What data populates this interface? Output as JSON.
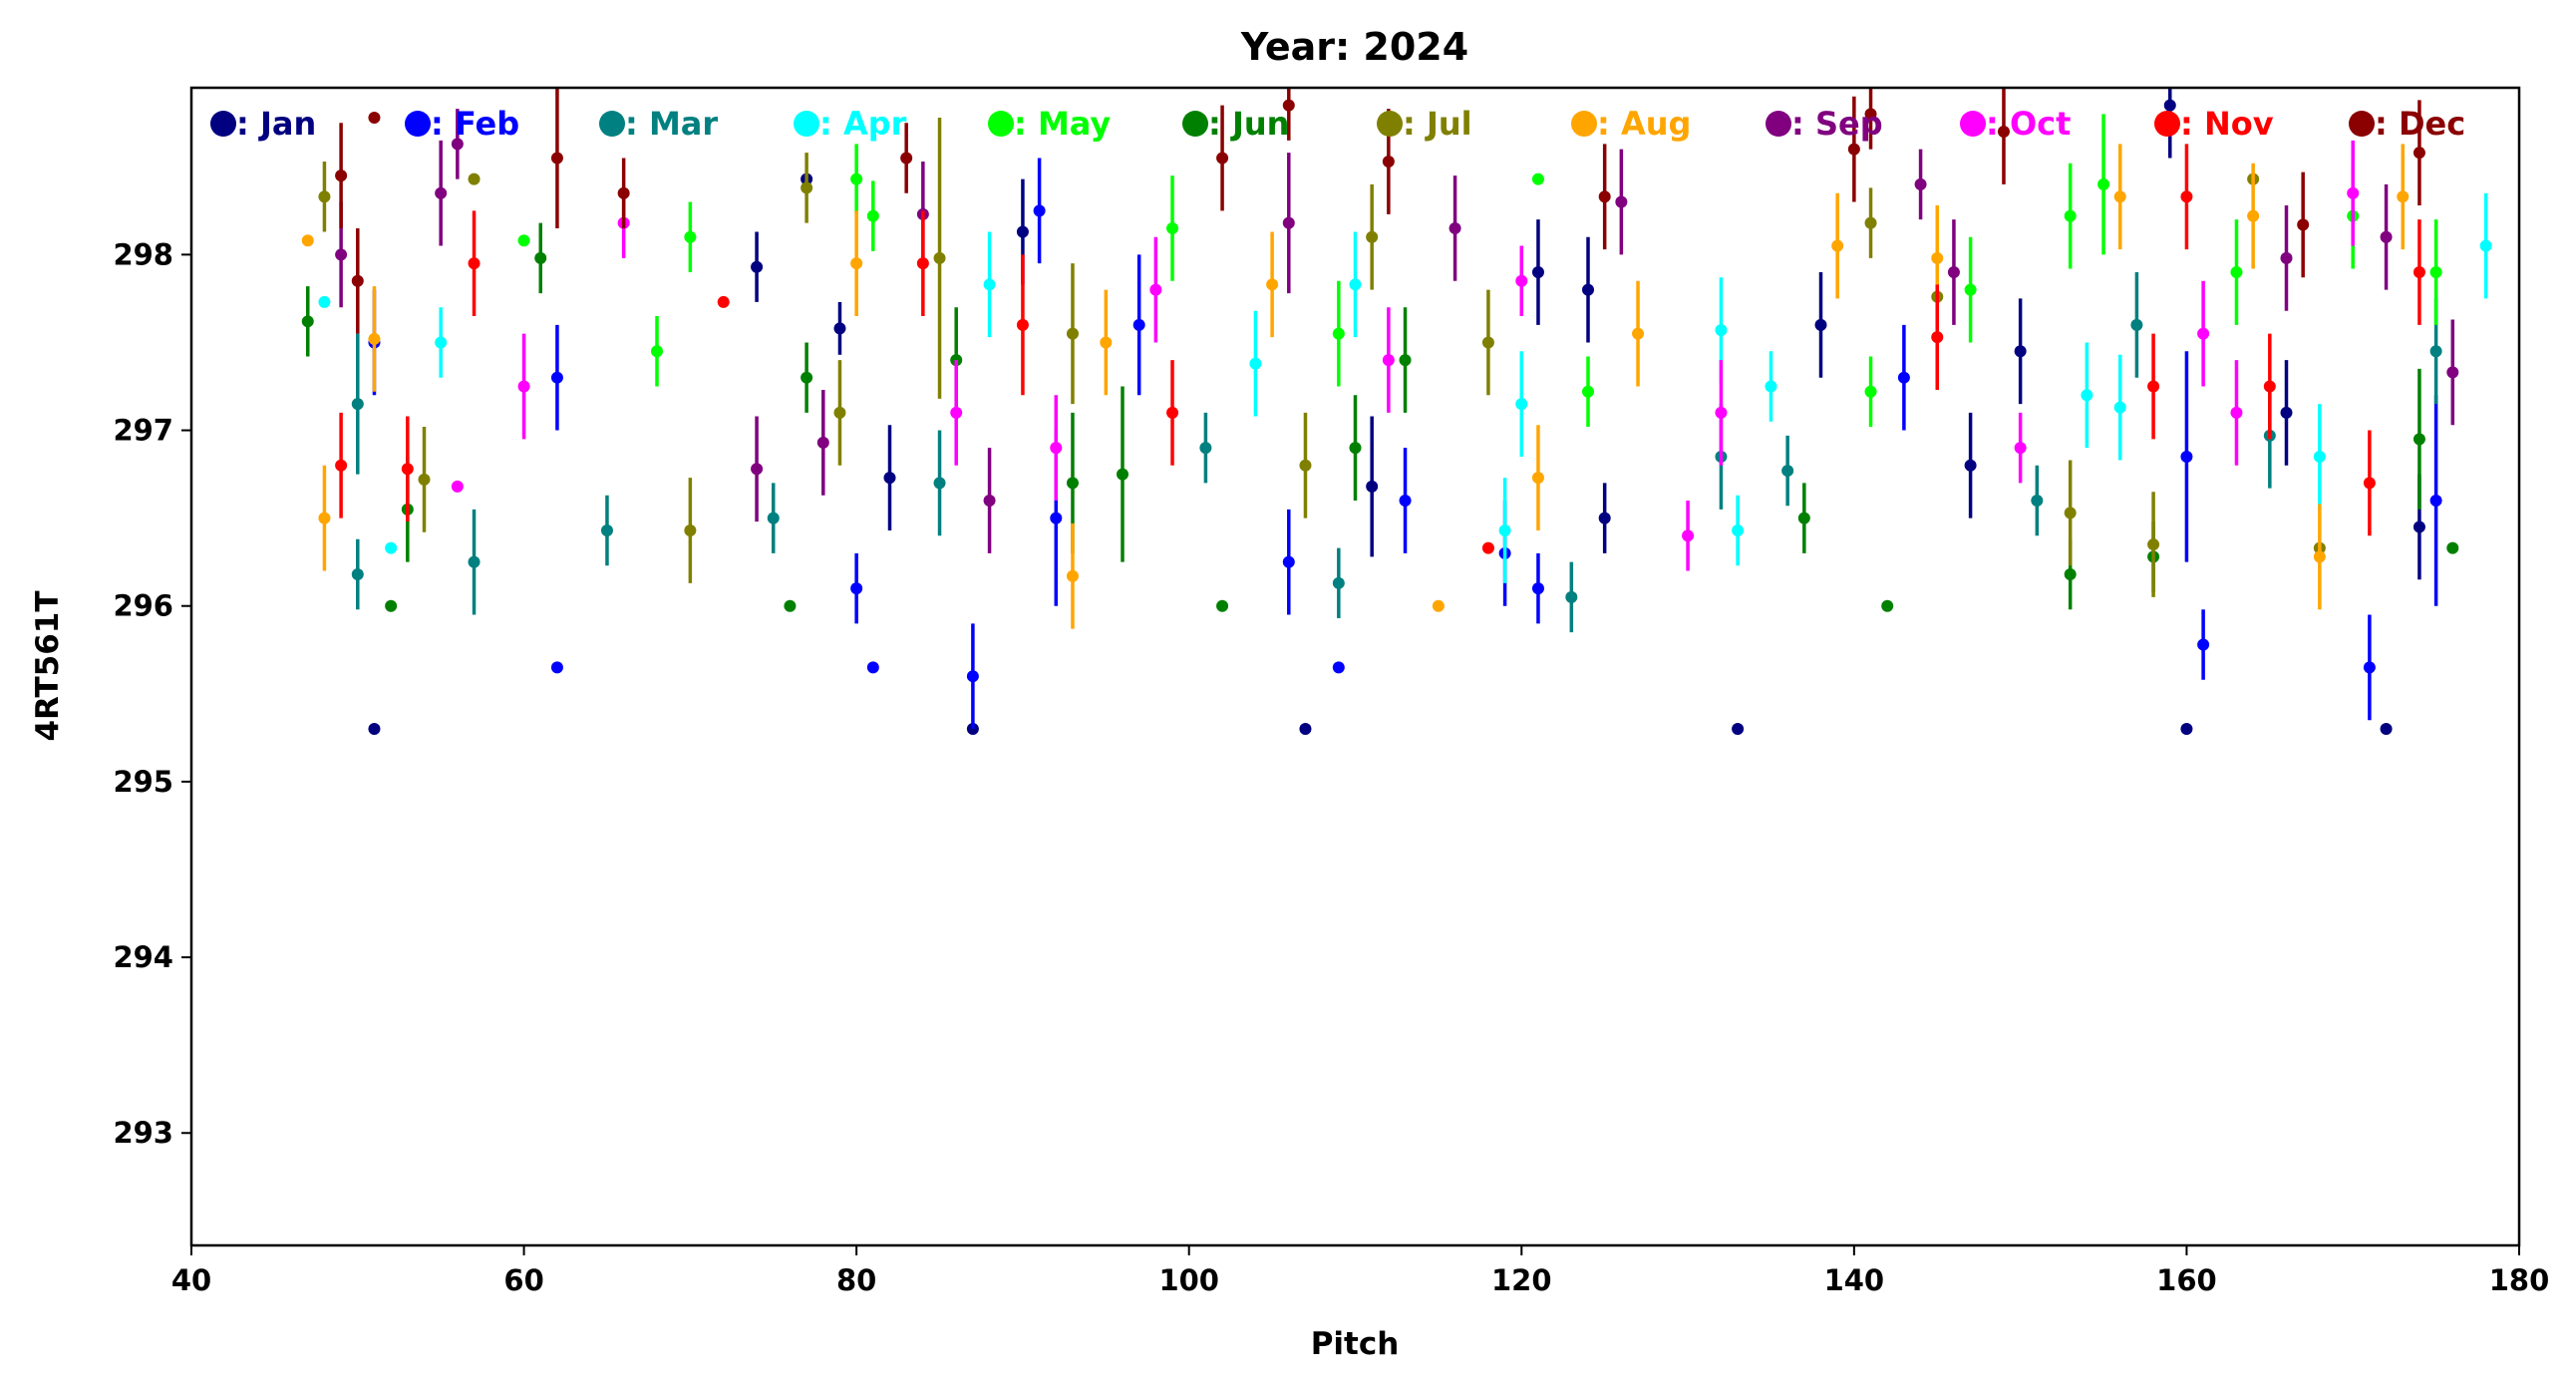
{
  "chart_data": {
    "type": "scatter",
    "title": "Year: 2024",
    "xlabel": "Pitch",
    "ylabel": "4RT561T",
    "xlim": [
      40,
      180
    ],
    "ylim": [
      292.36,
      298.95
    ],
    "xticks": [
      40,
      60,
      80,
      100,
      120,
      140,
      160,
      180
    ],
    "yticks": [
      293,
      294,
      295,
      296,
      297,
      298
    ],
    "grid": false,
    "legend_placement": "top (inside, single row)",
    "point_format": "[pitch, value, error]",
    "series": [
      {
        "name": "Jan",
        "legend": ": Jan",
        "color": "#000080",
        "points": [
          [
            51,
            295.3,
            0
          ],
          [
            74,
            297.93,
            0.2
          ],
          [
            77,
            298.43,
            0
          ],
          [
            79,
            297.58,
            0.15
          ],
          [
            82,
            296.73,
            0.3
          ],
          [
            87,
            295.3,
            0
          ],
          [
            90,
            298.13,
            0.3
          ],
          [
            107,
            295.3,
            0
          ],
          [
            111,
            296.68,
            0.4
          ],
          [
            121,
            297.9,
            0.3
          ],
          [
            124,
            297.8,
            0.3
          ],
          [
            125,
            296.5,
            0.2
          ],
          [
            133,
            295.3,
            0
          ],
          [
            138,
            297.6,
            0.3
          ],
          [
            147,
            296.8,
            0.3
          ],
          [
            150,
            297.45,
            0.3
          ],
          [
            159,
            298.85,
            0.3
          ],
          [
            160,
            295.3,
            0
          ],
          [
            166,
            297.1,
            0.3
          ],
          [
            172,
            295.3,
            0
          ],
          [
            174,
            296.45,
            0.3
          ]
        ]
      },
      {
        "name": "Feb",
        "legend": ": Feb",
        "color": "#0000ff",
        "points": [
          [
            51,
            297.5,
            0.3
          ],
          [
            62,
            297.3,
            0.3
          ],
          [
            62,
            295.65,
            0
          ],
          [
            80,
            296.1,
            0.2
          ],
          [
            81,
            295.65,
            0
          ],
          [
            87,
            295.6,
            0.3
          ],
          [
            91,
            298.25,
            0.3
          ],
          [
            92,
            296.5,
            0.5
          ],
          [
            97,
            297.6,
            0.4
          ],
          [
            106,
            296.25,
            0.3
          ],
          [
            109,
            295.65,
            0
          ],
          [
            113,
            296.6,
            0.3
          ],
          [
            119,
            296.3,
            0.3
          ],
          [
            121,
            296.1,
            0.2
          ],
          [
            143,
            297.3,
            0.3
          ],
          [
            160,
            296.85,
            0.6
          ],
          [
            161,
            295.78,
            0.2
          ],
          [
            171,
            295.65,
            0.3
          ],
          [
            175,
            296.6,
            0.6
          ]
        ]
      },
      {
        "name": "Mar",
        "legend": ": Mar",
        "color": "#008080",
        "points": [
          [
            50,
            297.15,
            0.4
          ],
          [
            50,
            296.18,
            0.2
          ],
          [
            57,
            296.25,
            0.3
          ],
          [
            65,
            296.43,
            0.2
          ],
          [
            75,
            296.5,
            0.2
          ],
          [
            85,
            296.7,
            0.3
          ],
          [
            101,
            296.9,
            0.2
          ],
          [
            109,
            296.13,
            0.2
          ],
          [
            123,
            296.05,
            0.2
          ],
          [
            132,
            296.85,
            0.3
          ],
          [
            136,
            296.77,
            0.2
          ],
          [
            151,
            296.6,
            0.2
          ],
          [
            157,
            297.6,
            0.3
          ],
          [
            165,
            296.97,
            0.3
          ],
          [
            175,
            297.45,
            0.3
          ]
        ]
      },
      {
        "name": "Apr",
        "legend": ": Apr",
        "color": "#00ffff",
        "points": [
          [
            48,
            297.73,
            0
          ],
          [
            52,
            296.33,
            0
          ],
          [
            55,
            297.5,
            0.2
          ],
          [
            88,
            297.83,
            0.3
          ],
          [
            104,
            297.38,
            0.3
          ],
          [
            110,
            297.83,
            0.3
          ],
          [
            119,
            296.43,
            0.3
          ],
          [
            120,
            297.15,
            0.3
          ],
          [
            132,
            297.57,
            0.3
          ],
          [
            133,
            296.43,
            0.2
          ],
          [
            135,
            297.25,
            0.2
          ],
          [
            154,
            297.2,
            0.3
          ],
          [
            156,
            297.13,
            0.3
          ],
          [
            168,
            296.85,
            0.3
          ],
          [
            178,
            298.05,
            0.3
          ]
        ]
      },
      {
        "name": "May",
        "legend": ": May",
        "color": "#00ff00",
        "points": [
          [
            60,
            298.08,
            0
          ],
          [
            68,
            297.45,
            0.2
          ],
          [
            70,
            298.1,
            0.2
          ],
          [
            80,
            298.43,
            0.2
          ],
          [
            81,
            298.22,
            0.2
          ],
          [
            99,
            298.15,
            0.3
          ],
          [
            109,
            297.55,
            0.3
          ],
          [
            121,
            298.43,
            0
          ],
          [
            124,
            297.22,
            0.2
          ],
          [
            141,
            297.22,
            0.2
          ],
          [
            147,
            297.8,
            0.3
          ],
          [
            153,
            298.22,
            0.3
          ],
          [
            155,
            298.4,
            0.4
          ],
          [
            163,
            297.9,
            0.3
          ],
          [
            170,
            298.22,
            0.3
          ],
          [
            175,
            297.9,
            0.3
          ]
        ]
      },
      {
        "name": "Jun",
        "legend": ": Jun",
        "color": "#008000",
        "points": [
          [
            47,
            297.62,
            0.2
          ],
          [
            52,
            296.0,
            0
          ],
          [
            53,
            296.55,
            0.3
          ],
          [
            61,
            297.98,
            0.2
          ],
          [
            76,
            296.0,
            0
          ],
          [
            77,
            297.3,
            0.2
          ],
          [
            86,
            297.4,
            0.3
          ],
          [
            93,
            296.7,
            0.4
          ],
          [
            96,
            296.75,
            0.5
          ],
          [
            102,
            296.0,
            0
          ],
          [
            110,
            296.9,
            0.3
          ],
          [
            113,
            297.4,
            0.3
          ],
          [
            137,
            296.5,
            0.2
          ],
          [
            142,
            296.0,
            0
          ],
          [
            153,
            296.18,
            0.2
          ],
          [
            158,
            296.28,
            0.2
          ],
          [
            174,
            296.95,
            0.4
          ],
          [
            176,
            296.33,
            0
          ]
        ]
      },
      {
        "name": "Jul",
        "legend": ": Jul",
        "color": "#808000",
        "points": [
          [
            48,
            298.33,
            0.2
          ],
          [
            54,
            296.72,
            0.3
          ],
          [
            57,
            298.43,
            0
          ],
          [
            70,
            296.43,
            0.3
          ],
          [
            77,
            298.38,
            0.2
          ],
          [
            79,
            297.1,
            0.3
          ],
          [
            85,
            297.98,
            0.8
          ],
          [
            93,
            297.55,
            0.4
          ],
          [
            107,
            296.8,
            0.3
          ],
          [
            111,
            298.1,
            0.3
          ],
          [
            118,
            297.5,
            0.3
          ],
          [
            141,
            298.18,
            0.2
          ],
          [
            145,
            297.76,
            0.2
          ],
          [
            153,
            296.53,
            0.3
          ],
          [
            158,
            296.35,
            0.3
          ],
          [
            164,
            298.43,
            0
          ],
          [
            168,
            296.33,
            0
          ]
        ]
      },
      {
        "name": "Aug",
        "legend": ": Aug",
        "color": "#ffa500",
        "points": [
          [
            47,
            298.08,
            0
          ],
          [
            48,
            296.5,
            0.3
          ],
          [
            51,
            297.52,
            0.3
          ],
          [
            80,
            297.95,
            0.3
          ],
          [
            93,
            296.17,
            0.3
          ],
          [
            95,
            297.5,
            0.3
          ],
          [
            105,
            297.83,
            0.3
          ],
          [
            115,
            296.0,
            0
          ],
          [
            121,
            296.73,
            0.3
          ],
          [
            127,
            297.55,
            0.3
          ],
          [
            139,
            298.05,
            0.3
          ],
          [
            145,
            297.98,
            0.3
          ],
          [
            156,
            298.33,
            0.3
          ],
          [
            164,
            298.22,
            0.3
          ],
          [
            168,
            296.28,
            0.3
          ],
          [
            173,
            298.33,
            0.3
          ]
        ]
      },
      {
        "name": "Sep",
        "legend": ": Sep",
        "color": "#800080",
        "points": [
          [
            49,
            298.0,
            0.3
          ],
          [
            55,
            298.35,
            0.3
          ],
          [
            56,
            298.63,
            0.2
          ],
          [
            74,
            296.78,
            0.3
          ],
          [
            78,
            296.93,
            0.3
          ],
          [
            84,
            298.23,
            0.3
          ],
          [
            88,
            296.6,
            0.3
          ],
          [
            106,
            298.18,
            0.4
          ],
          [
            116,
            298.15,
            0.3
          ],
          [
            126,
            298.3,
            0.3
          ],
          [
            144,
            298.4,
            0.2
          ],
          [
            146,
            297.9,
            0.3
          ],
          [
            166,
            297.98,
            0.3
          ],
          [
            172,
            298.1,
            0.3
          ],
          [
            176,
            297.33,
            0.3
          ]
        ]
      },
      {
        "name": "Oct",
        "legend": ": Oct",
        "color": "#ff00ff",
        "points": [
          [
            56,
            296.68,
            0
          ],
          [
            60,
            297.25,
            0.3
          ],
          [
            66,
            298.18,
            0.2
          ],
          [
            86,
            297.1,
            0.3
          ],
          [
            92,
            296.9,
            0.3
          ],
          [
            98,
            297.8,
            0.3
          ],
          [
            112,
            297.4,
            0.3
          ],
          [
            120,
            297.85,
            0.2
          ],
          [
            130,
            296.4,
            0.2
          ],
          [
            132,
            297.1,
            0.3
          ],
          [
            150,
            296.9,
            0.2
          ],
          [
            161,
            297.55,
            0.3
          ],
          [
            163,
            297.1,
            0.3
          ],
          [
            170,
            298.35,
            0.3
          ]
        ]
      },
      {
        "name": "Nov",
        "legend": ": Nov",
        "color": "#ff0000",
        "points": [
          [
            49,
            296.8,
            0.3
          ],
          [
            53,
            296.78,
            0.3
          ],
          [
            57,
            297.95,
            0.3
          ],
          [
            72,
            297.73,
            0
          ],
          [
            84,
            297.95,
            0.3
          ],
          [
            90,
            297.6,
            0.4
          ],
          [
            99,
            297.1,
            0.3
          ],
          [
            118,
            296.33,
            0
          ],
          [
            145,
            297.53,
            0.3
          ],
          [
            158,
            297.25,
            0.3
          ],
          [
            160,
            298.33,
            0.3
          ],
          [
            165,
            297.25,
            0.3
          ],
          [
            171,
            296.7,
            0.3
          ],
          [
            174,
            297.9,
            0.3
          ]
        ]
      },
      {
        "name": "Dec",
        "legend": ": Dec",
        "color": "#8b0000",
        "points": [
          [
            49,
            298.45,
            0.3
          ],
          [
            50,
            297.85,
            0.3
          ],
          [
            51,
            298.78,
            0
          ],
          [
            62,
            298.55,
            0.4
          ],
          [
            66,
            298.35,
            0.2
          ],
          [
            83,
            298.55,
            0.2
          ],
          [
            102,
            298.55,
            0.3
          ],
          [
            106,
            298.85,
            0.2
          ],
          [
            112,
            298.53,
            0.3
          ],
          [
            125,
            298.33,
            0.3
          ],
          [
            140,
            298.6,
            0.3
          ],
          [
            141,
            298.8,
            0.2
          ],
          [
            149,
            298.7,
            0.3
          ],
          [
            167,
            298.17,
            0.3
          ],
          [
            174,
            298.58,
            0.3
          ]
        ]
      }
    ]
  }
}
